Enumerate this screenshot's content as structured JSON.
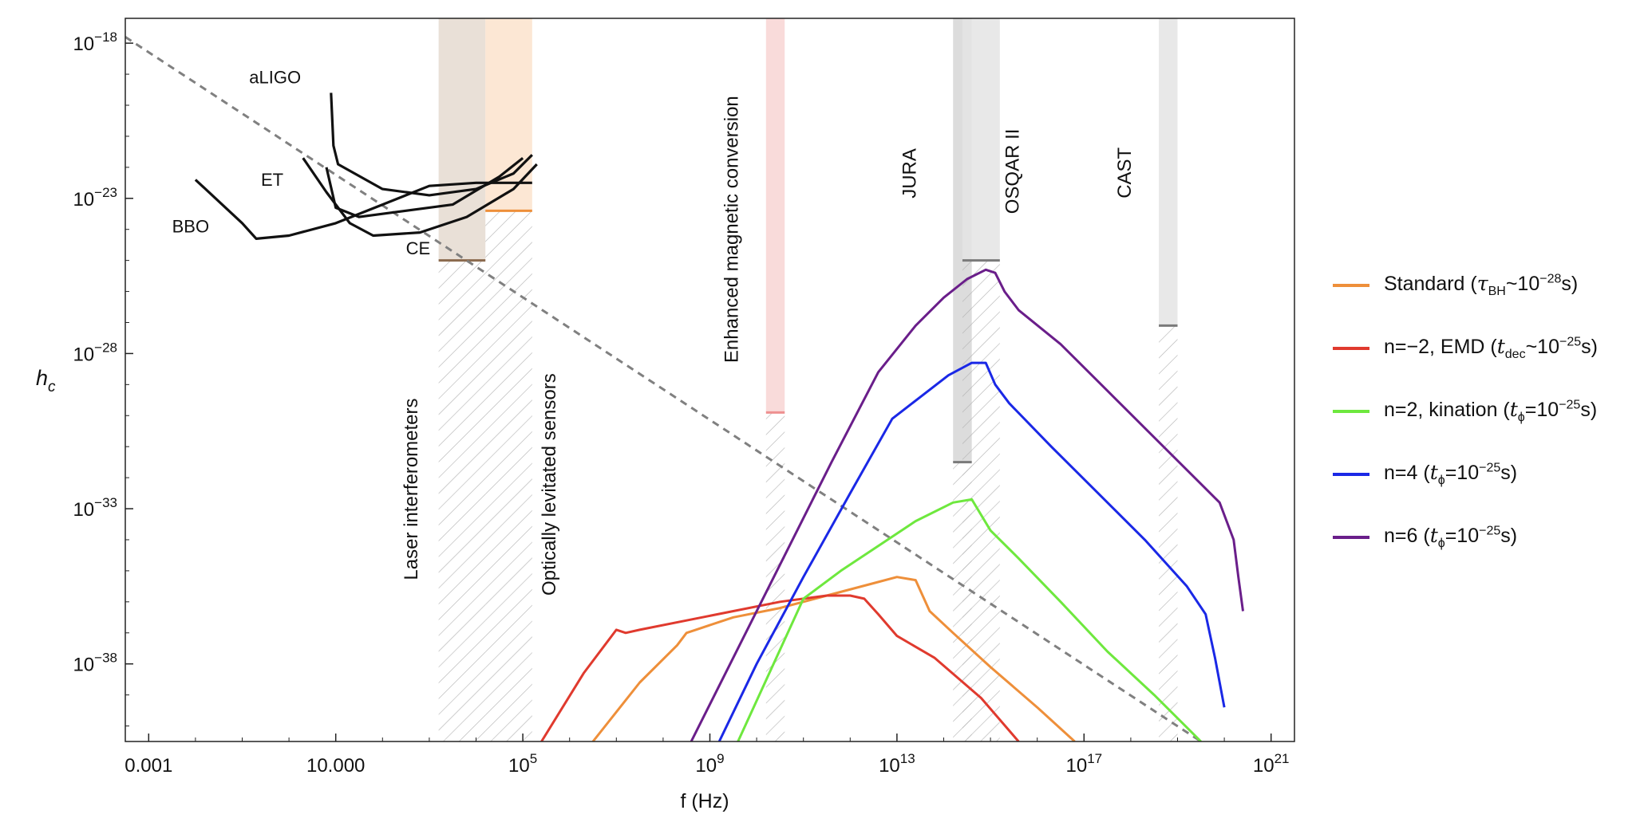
{
  "chart_data": {
    "type": "line",
    "xlabel": "f (Hz)",
    "ylabel": "h",
    "ylabel_subscript": "c",
    "x_scale": "log10",
    "y_scale": "log10",
    "xlim_log10": [
      -3.5,
      21.5
    ],
    "ylim_log10": [
      -40.5,
      -17.2
    ],
    "x_ticks": [
      {
        "log": -3,
        "label": "0.001",
        "sup": ""
      },
      {
        "log": 1,
        "label": "10.000",
        "sup": ""
      },
      {
        "log": 5,
        "label": "10",
        "sup": "5"
      },
      {
        "log": 9,
        "label": "10",
        "sup": "9"
      },
      {
        "log": 13,
        "label": "10",
        "sup": "13"
      },
      {
        "log": 17,
        "label": "10",
        "sup": "17"
      },
      {
        "log": 21,
        "label": "10",
        "sup": "21"
      }
    ],
    "y_ticks": [
      {
        "log": -18,
        "label": "10",
        "sup": "−18"
      },
      {
        "log": -23,
        "label": "10",
        "sup": "−23"
      },
      {
        "log": -28,
        "label": "10",
        "sup": "−28"
      },
      {
        "log": -33,
        "label": "10",
        "sup": "−33"
      },
      {
        "log": -38,
        "label": "10",
        "sup": "−38"
      }
    ],
    "series": [
      {
        "name": "Standard",
        "color": "#EE8F3A",
        "points": [
          [
            6.5,
            -40.5
          ],
          [
            7.5,
            -38.6
          ],
          [
            8.3,
            -37.4
          ],
          [
            8.5,
            -37.0
          ],
          [
            8.7,
            -36.9
          ],
          [
            9.5,
            -36.5
          ],
          [
            10.5,
            -36.2
          ],
          [
            11.5,
            -35.8
          ],
          [
            12.5,
            -35.4
          ],
          [
            13.0,
            -35.2
          ],
          [
            13.4,
            -35.3
          ],
          [
            13.7,
            -36.3
          ],
          [
            14.2,
            -37.0
          ],
          [
            15.0,
            -38.1
          ],
          [
            16.0,
            -39.4
          ],
          [
            16.8,
            -40.5
          ]
        ]
      },
      {
        "name": "n=−2, EMD",
        "color": "#E03A2E",
        "points": [
          [
            5.4,
            -40.5
          ],
          [
            6.3,
            -38.3
          ],
          [
            7.0,
            -36.9
          ],
          [
            7.2,
            -37.0
          ],
          [
            7.5,
            -36.9
          ],
          [
            8.5,
            -36.6
          ],
          [
            9.5,
            -36.3
          ],
          [
            10.5,
            -36.0
          ],
          [
            11.5,
            -35.8
          ],
          [
            12.0,
            -35.8
          ],
          [
            12.3,
            -35.9
          ],
          [
            12.6,
            -36.4
          ],
          [
            13.0,
            -37.1
          ],
          [
            13.8,
            -37.8
          ],
          [
            14.8,
            -39.1
          ],
          [
            15.6,
            -40.5
          ]
        ]
      },
      {
        "name": "n=2, kination",
        "color": "#6EE83E",
        "points": [
          [
            9.6,
            -40.5
          ],
          [
            10.3,
            -38.2
          ],
          [
            11.0,
            -35.9
          ],
          [
            11.8,
            -35.0
          ],
          [
            12.6,
            -34.2
          ],
          [
            13.4,
            -33.4
          ],
          [
            14.2,
            -32.8
          ],
          [
            14.6,
            -32.7
          ],
          [
            15.0,
            -33.7
          ],
          [
            15.6,
            -34.6
          ],
          [
            16.5,
            -36.0
          ],
          [
            17.5,
            -37.6
          ],
          [
            18.5,
            -39.0
          ],
          [
            19.3,
            -40.2
          ],
          [
            19.5,
            -40.5
          ]
        ]
      },
      {
        "name": "n=4",
        "color": "#1A28E6",
        "points": [
          [
            9.2,
            -40.5
          ],
          [
            10.0,
            -38.0
          ],
          [
            11.0,
            -35.2
          ],
          [
            12.0,
            -32.5
          ],
          [
            12.9,
            -30.1
          ],
          [
            13.5,
            -29.4
          ],
          [
            14.1,
            -28.7
          ],
          [
            14.6,
            -28.3
          ],
          [
            14.9,
            -28.3
          ],
          [
            15.1,
            -29.0
          ],
          [
            15.4,
            -29.6
          ],
          [
            16.3,
            -31.0
          ],
          [
            17.3,
            -32.5
          ],
          [
            18.3,
            -34.0
          ],
          [
            19.2,
            -35.5
          ],
          [
            19.6,
            -36.4
          ],
          [
            19.8,
            -37.8
          ],
          [
            20.0,
            -39.4
          ]
        ]
      },
      {
        "name": "n=6",
        "color": "#6A1E8A",
        "points": [
          [
            8.6,
            -40.5
          ],
          [
            9.6,
            -37.5
          ],
          [
            10.6,
            -34.5
          ],
          [
            11.6,
            -31.5
          ],
          [
            12.6,
            -28.6
          ],
          [
            13.4,
            -27.1
          ],
          [
            14.0,
            -26.2
          ],
          [
            14.5,
            -25.6
          ],
          [
            14.9,
            -25.3
          ],
          [
            15.1,
            -25.4
          ],
          [
            15.3,
            -26.0
          ],
          [
            15.6,
            -26.6
          ],
          [
            16.5,
            -27.7
          ],
          [
            17.5,
            -29.2
          ],
          [
            18.5,
            -30.7
          ],
          [
            19.5,
            -32.2
          ],
          [
            19.9,
            -32.8
          ],
          [
            20.2,
            -34.0
          ],
          [
            20.3,
            -35.2
          ],
          [
            20.4,
            -36.3
          ]
        ]
      }
    ],
    "reference_line": {
      "name": "dashed",
      "color": "#808080",
      "x1": -3.5,
      "y1": -17.8,
      "x2": 19.5,
      "y2": -40.5
    },
    "detectors": [
      {
        "name": "aLIGO",
        "label_x": -0.85,
        "label_y": -19.3,
        "points": [
          [
            0.9,
            -19.6
          ],
          [
            0.95,
            -21.3
          ],
          [
            1.05,
            -21.9
          ],
          [
            2.0,
            -22.7
          ],
          [
            3.0,
            -22.9
          ],
          [
            4.0,
            -22.7
          ],
          [
            4.8,
            -22.2
          ],
          [
            5.2,
            -21.6
          ]
        ]
      },
      {
        "name": "ET",
        "label_x": -0.6,
        "label_y": -22.6,
        "points": [
          [
            0.3,
            -21.7
          ],
          [
            0.8,
            -22.8
          ],
          [
            1.3,
            -23.8
          ],
          [
            1.8,
            -24.2
          ],
          [
            2.8,
            -24.1
          ],
          [
            3.8,
            -23.6
          ],
          [
            4.8,
            -22.7
          ],
          [
            5.3,
            -21.9
          ]
        ]
      },
      {
        "name": "CE",
        "label_x": 2.5,
        "label_y": -24.8,
        "points": [
          [
            0.8,
            -22.0
          ],
          [
            1.0,
            -23.3
          ],
          [
            1.5,
            -23.6
          ],
          [
            2.5,
            -23.4
          ],
          [
            3.5,
            -23.2
          ],
          [
            4.5,
            -22.3
          ],
          [
            5.0,
            -21.7
          ]
        ]
      },
      {
        "name": "BBO",
        "label_x": -2.5,
        "label_y": -24.1,
        "points": [
          [
            -2.0,
            -22.4
          ],
          [
            -1.0,
            -23.8
          ],
          [
            -0.7,
            -24.3
          ],
          [
            0.0,
            -24.2
          ],
          [
            1.0,
            -23.8
          ],
          [
            2.0,
            -23.2
          ],
          [
            3.0,
            -22.6
          ],
          [
            4.0,
            -22.5
          ],
          [
            5.2,
            -22.5
          ]
        ]
      }
    ],
    "bands": [
      {
        "name": "Laser interferometers",
        "x1": 3.2,
        "x2": 4.2,
        "top": -17.2,
        "level": -25.0,
        "fill": "#E5DAD0",
        "line": "#8B6A4E",
        "label_x": 2.75,
        "label_y": -35.3
      },
      {
        "name": "Optically levitated sensors",
        "x1": 4.2,
        "x2": 5.2,
        "top": -17.2,
        "level": -23.4,
        "fill": "#FBE3CD",
        "line": "#EE8F3A",
        "label_x": 5.7,
        "label_y": -35.8
      },
      {
        "name": "Enhanced magnetic conversion",
        "x1": 10.2,
        "x2": 10.6,
        "top": -17.2,
        "level": -29.9,
        "fill": "#F8D5D3",
        "line": "#EE9090",
        "label_x": 9.6,
        "label_y": -28.3
      },
      {
        "name": "JURA",
        "x1": 14.2,
        "x2": 14.6,
        "top": -17.2,
        "level": -31.5,
        "fill": "#D6D6D6",
        "line": "#7A7A7A",
        "label_x": 13.4,
        "label_y": -23.0
      },
      {
        "name": "OSQAR II",
        "x1": 14.4,
        "x2": 15.2,
        "top": -17.2,
        "level": -25.0,
        "fill": "#E4E4E4",
        "line": "#7A7A7A",
        "label_x": 15.6,
        "label_y": -23.5
      },
      {
        "name": "CAST",
        "x1": 18.6,
        "x2": 19.0,
        "top": -17.2,
        "level": -27.1,
        "fill": "#E4E4E4",
        "line": "#7A7A7A",
        "label_x": 18.0,
        "label_y": -23.0
      }
    ]
  },
  "legend": {
    "items": [
      {
        "color": "#EE8F3A",
        "text": "Standard (",
        "var": "τ",
        "sub": "BH",
        "mid": "~10",
        "sup": "−28",
        "end": "s)"
      },
      {
        "color": "#E03A2E",
        "text": "n=−2, EMD (",
        "var": "t",
        "sub": "dec",
        "mid": "~10",
        "sup": "−25",
        "end": "s)"
      },
      {
        "color": "#6EE83E",
        "text": "n=2, kination (",
        "var": "t",
        "sub": "ϕ",
        "mid": "=10",
        "sup": "−25",
        "end": "s)"
      },
      {
        "color": "#1A28E6",
        "text": "n=4 (",
        "var": "t",
        "sub": "ϕ",
        "mid": "=10",
        "sup": "−25",
        "end": "s)"
      },
      {
        "color": "#6A1E8A",
        "text": "n=6 (",
        "var": "t",
        "sub": "ϕ",
        "mid": "=10",
        "sup": "−25",
        "end": "s)"
      }
    ]
  }
}
